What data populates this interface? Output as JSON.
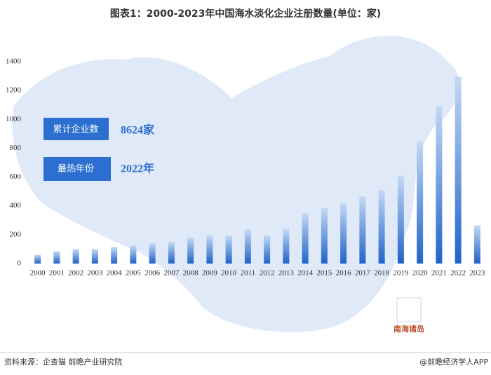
{
  "chart_data": {
    "type": "bar",
    "title": "图表1：2000-2023年中国海水淡化企业注册数量(单位：家)",
    "categories": [
      "2000",
      "2001",
      "2002",
      "2003",
      "2004",
      "2005",
      "2006",
      "2007",
      "2008",
      "2009",
      "2010",
      "2011",
      "2012",
      "2013",
      "2014",
      "2015",
      "2016",
      "2017",
      "2018",
      "2019",
      "2020",
      "2021",
      "2022",
      "2023"
    ],
    "values": [
      60,
      85,
      100,
      100,
      115,
      125,
      140,
      150,
      180,
      195,
      195,
      235,
      195,
      240,
      350,
      385,
      420,
      465,
      510,
      610,
      845,
      1090,
      1295,
      265
    ],
    "color": "#1f63c9",
    "ylim": [
      0,
      1400
    ],
    "yticks": [
      0,
      200,
      400,
      600,
      800,
      1000,
      1200,
      1400
    ],
    "annotations": [
      {
        "label": "累计企业数",
        "value": "8624家"
      },
      {
        "label": "最热年份",
        "value": "2022年"
      }
    ],
    "map_label": "南海诸岛",
    "source": "资料来源：企查猫 前瞻产业研究院",
    "credit": "@前瞻经济学人APP"
  }
}
